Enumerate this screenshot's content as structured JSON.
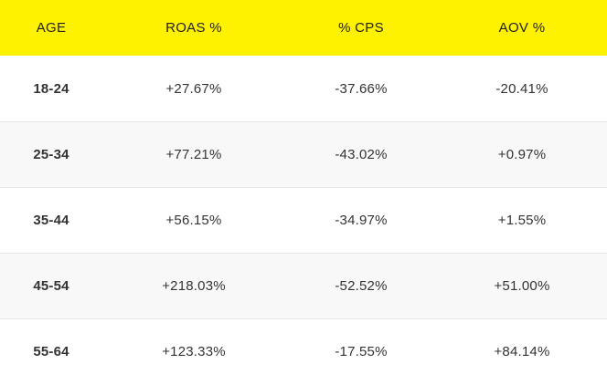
{
  "table": {
    "headers": [
      "AGE",
      "ROAS %",
      "% CPS",
      "AOV %"
    ],
    "rows": [
      [
        "18-24",
        "+27.67%",
        "-37.66%",
        "-20.41%"
      ],
      [
        "25-34",
        "+77.21%",
        "-43.02%",
        "+0.97%"
      ],
      [
        "35-44",
        "+56.15%",
        "-34.97%",
        "+1.55%"
      ],
      [
        "45-54",
        "+218.03%",
        "-52.52%",
        "+51.00%"
      ],
      [
        "55-64",
        "+123.33%",
        "-17.55%",
        "+84.14%"
      ]
    ]
  },
  "colors": {
    "header_bg": "#fff200",
    "row_alt_bg": "#f8f8f8",
    "text": "#333333"
  }
}
